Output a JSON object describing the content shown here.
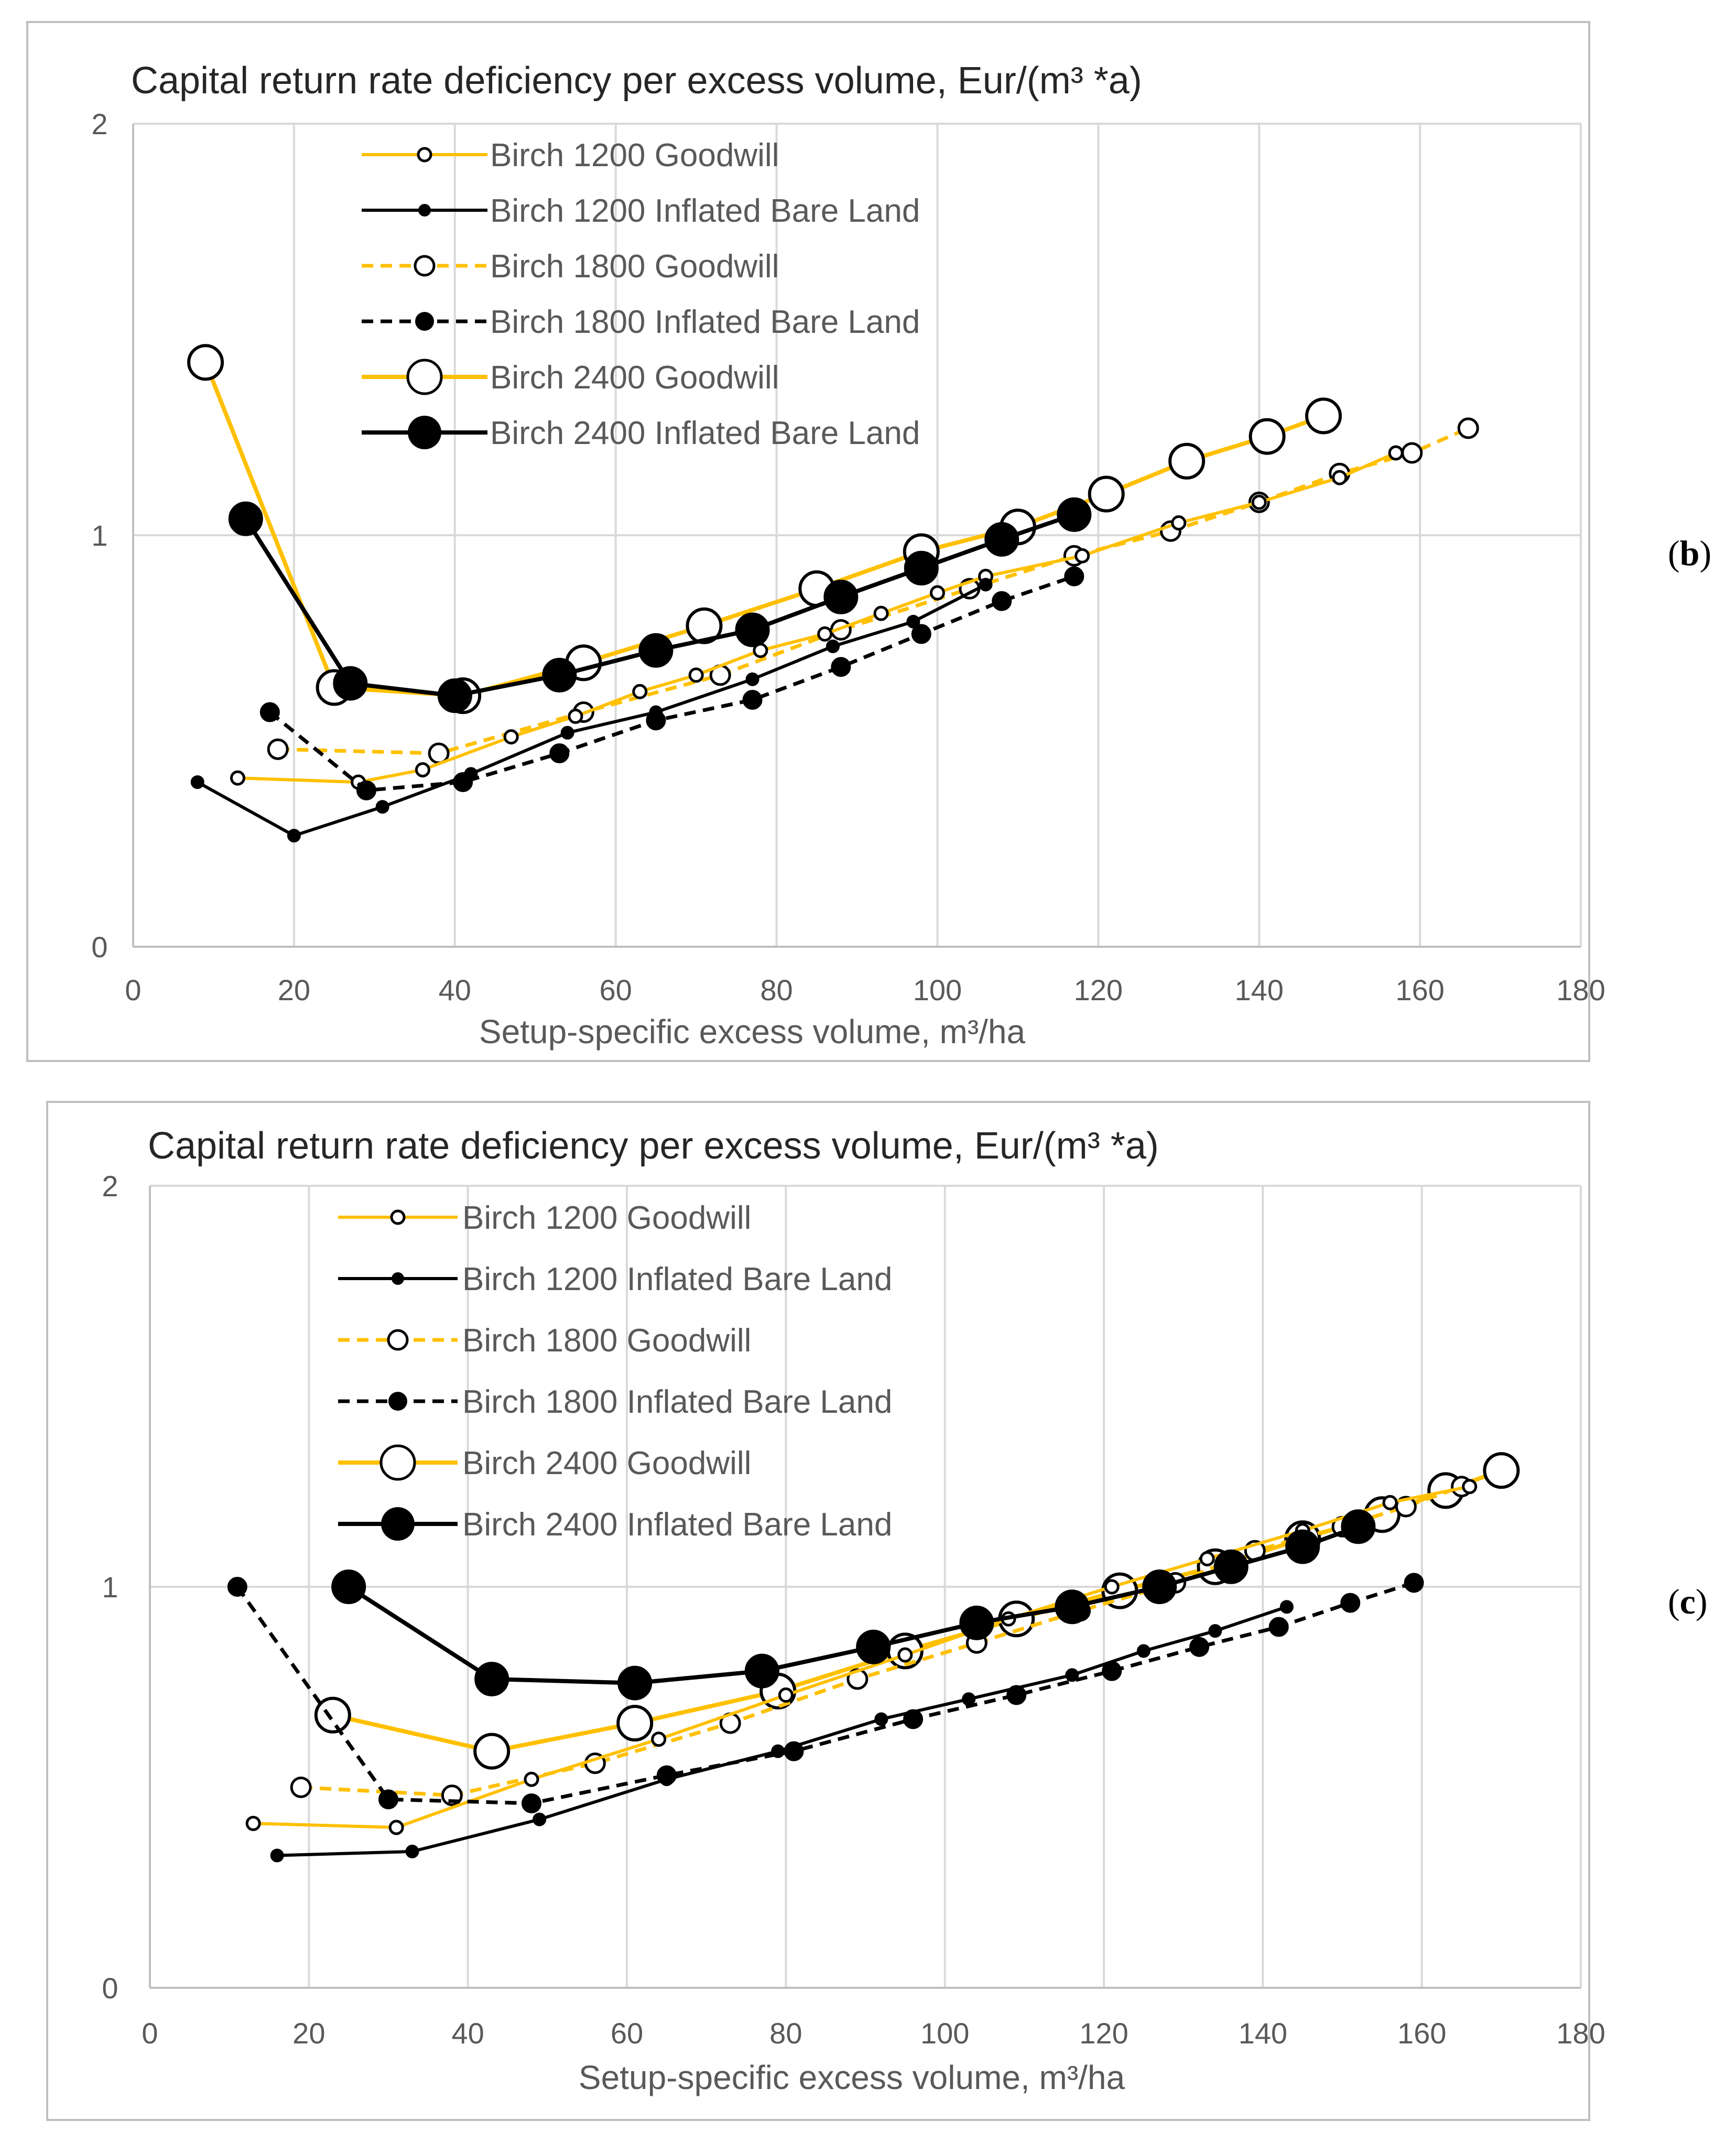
{
  "colors": {
    "goodwill": "#FFC000",
    "inflated": "#000000"
  },
  "chart_data": [
    {
      "type": "line",
      "panel_label_prefix": "(",
      "panel_label_letter": "b",
      "panel_label_suffix": ")",
      "title": "Capital return rate deficiency per excess volume,  Eur/(m³ *a)",
      "xlabel": "Setup-specific excess volume, m³/ha",
      "xlim": [
        0,
        180
      ],
      "ylim": [
        0,
        2
      ],
      "xticks": [
        0,
        20,
        40,
        60,
        80,
        100,
        120,
        140,
        160,
        180
      ],
      "yticks": [
        0,
        1,
        2
      ],
      "series": [
        {
          "name": "Birch 1200 Goodwill",
          "color": "goodwill",
          "dash": false,
          "marker": "open",
          "size": "small",
          "x": [
            13,
            28,
            36,
            47,
            55,
            63,
            70,
            78,
            86,
            93,
            100,
            106,
            118,
            130,
            140,
            150,
            157
          ],
          "y": [
            0.41,
            0.4,
            0.43,
            0.51,
            0.56,
            0.62,
            0.66,
            0.72,
            0.76,
            0.81,
            0.86,
            0.9,
            0.95,
            1.03,
            1.08,
            1.14,
            1.2
          ]
        },
        {
          "name": "Birch 1200 Inflated Bare Land",
          "color": "inflated",
          "dash": false,
          "marker": "filled",
          "size": "small",
          "x": [
            8,
            20,
            31,
            42,
            54,
            65,
            77,
            87,
            97,
            106
          ],
          "y": [
            0.4,
            0.27,
            0.34,
            0.42,
            0.52,
            0.57,
            0.65,
            0.73,
            0.79,
            0.88
          ]
        },
        {
          "name": "Birch 1800 Goodwill",
          "color": "goodwill",
          "dash": true,
          "marker": "open",
          "size": "medium",
          "x": [
            18,
            38,
            56,
            73,
            88,
            104,
            117,
            129,
            140,
            150,
            159,
            166
          ],
          "y": [
            0.48,
            0.47,
            0.57,
            0.66,
            0.77,
            0.87,
            0.95,
            1.01,
            1.08,
            1.15,
            1.2,
            1.26
          ]
        },
        {
          "name": "Birch 1800 Inflated Bare Land",
          "color": "inflated",
          "dash": true,
          "marker": "filled",
          "size": "medium",
          "x": [
            17,
            29,
            41,
            53,
            65,
            77,
            88,
            98,
            108,
            117
          ],
          "y": [
            0.57,
            0.38,
            0.4,
            0.47,
            0.55,
            0.6,
            0.68,
            0.76,
            0.84,
            0.9
          ]
        },
        {
          "name": "Birch 2400 Goodwill",
          "color": "goodwill",
          "dash": false,
          "marker": "open",
          "size": "large",
          "x": [
            9,
            25,
            41,
            56,
            71,
            85,
            98,
            110,
            121,
            131,
            141,
            148
          ],
          "y": [
            1.42,
            0.63,
            0.61,
            0.69,
            0.78,
            0.87,
            0.96,
            1.02,
            1.1,
            1.18,
            1.24,
            1.29
          ]
        },
        {
          "name": "Birch 2400 Inflated Bare Land",
          "color": "inflated",
          "dash": false,
          "marker": "filled",
          "size": "large",
          "x": [
            14,
            27,
            40,
            53,
            65,
            77,
            88,
            98,
            108,
            117
          ],
          "y": [
            1.04,
            0.64,
            0.61,
            0.66,
            0.72,
            0.77,
            0.85,
            0.92,
            0.99,
            1.05
          ]
        }
      ]
    },
    {
      "type": "line",
      "panel_label_prefix": "(",
      "panel_label_letter": "c",
      "panel_label_suffix": ")",
      "title": "Capital return rate deficiency per excess volume,  Eur/(m³ *a)",
      "xlabel": "Setup-specific excess volume, m³/ha",
      "xlim": [
        0,
        180
      ],
      "ylim": [
        0,
        2
      ],
      "xticks": [
        0,
        20,
        40,
        60,
        80,
        100,
        120,
        140,
        160,
        180
      ],
      "yticks": [
        0,
        1,
        2
      ],
      "series": [
        {
          "name": "Birch 1200 Goodwill",
          "color": "goodwill",
          "dash": false,
          "marker": "open",
          "size": "small",
          "x": [
            13,
            31,
            48,
            64,
            80,
            95,
            108,
            121,
            133,
            145,
            156,
            166
          ],
          "y": [
            0.41,
            0.4,
            0.52,
            0.62,
            0.73,
            0.83,
            0.92,
            1.0,
            1.07,
            1.14,
            1.21,
            1.25
          ]
        },
        {
          "name": "Birch 1200 Inflated Bare Land",
          "color": "inflated",
          "dash": false,
          "marker": "filled",
          "size": "small",
          "x": [
            16,
            33,
            49,
            65,
            79,
            92,
            103,
            116,
            125,
            134,
            143
          ],
          "y": [
            0.33,
            0.34,
            0.42,
            0.52,
            0.59,
            0.67,
            0.72,
            0.78,
            0.84,
            0.89,
            0.95
          ]
        },
        {
          "name": "Birch 1800 Goodwill",
          "color": "goodwill",
          "dash": true,
          "marker": "open",
          "size": "medium",
          "x": [
            19,
            38,
            56,
            73,
            89,
            104,
            117,
            129,
            139,
            150,
            158,
            165
          ],
          "y": [
            0.5,
            0.48,
            0.56,
            0.66,
            0.77,
            0.86,
            0.94,
            1.01,
            1.09,
            1.15,
            1.2,
            1.25
          ]
        },
        {
          "name": "Birch 1800 Inflated Bare Land",
          "color": "inflated",
          "dash": true,
          "marker": "filled",
          "size": "medium",
          "x": [
            11,
            30,
            48,
            65,
            81,
            96,
            109,
            121,
            132,
            142,
            151,
            159
          ],
          "y": [
            1.0,
            0.47,
            0.46,
            0.53,
            0.59,
            0.67,
            0.73,
            0.79,
            0.85,
            0.9,
            0.96,
            1.01
          ]
        },
        {
          "name": "Birch 2400 Goodwill",
          "color": "goodwill",
          "dash": false,
          "marker": "open",
          "size": "large",
          "x": [
            23,
            43,
            61,
            79,
            95,
            109,
            122,
            134,
            145,
            155,
            163,
            170
          ],
          "y": [
            0.68,
            0.59,
            0.66,
            0.74,
            0.84,
            0.92,
            0.99,
            1.05,
            1.12,
            1.18,
            1.24,
            1.29
          ]
        },
        {
          "name": "Birch 2400 Inflated Bare Land",
          "color": "inflated",
          "dash": false,
          "marker": "filled",
          "size": "large",
          "x": [
            25,
            43,
            61,
            77,
            91,
            104,
            116,
            127,
            136,
            145,
            152
          ],
          "y": [
            1.0,
            0.77,
            0.76,
            0.79,
            0.85,
            0.91,
            0.95,
            1.0,
            1.05,
            1.1,
            1.15
          ]
        }
      ]
    }
  ]
}
